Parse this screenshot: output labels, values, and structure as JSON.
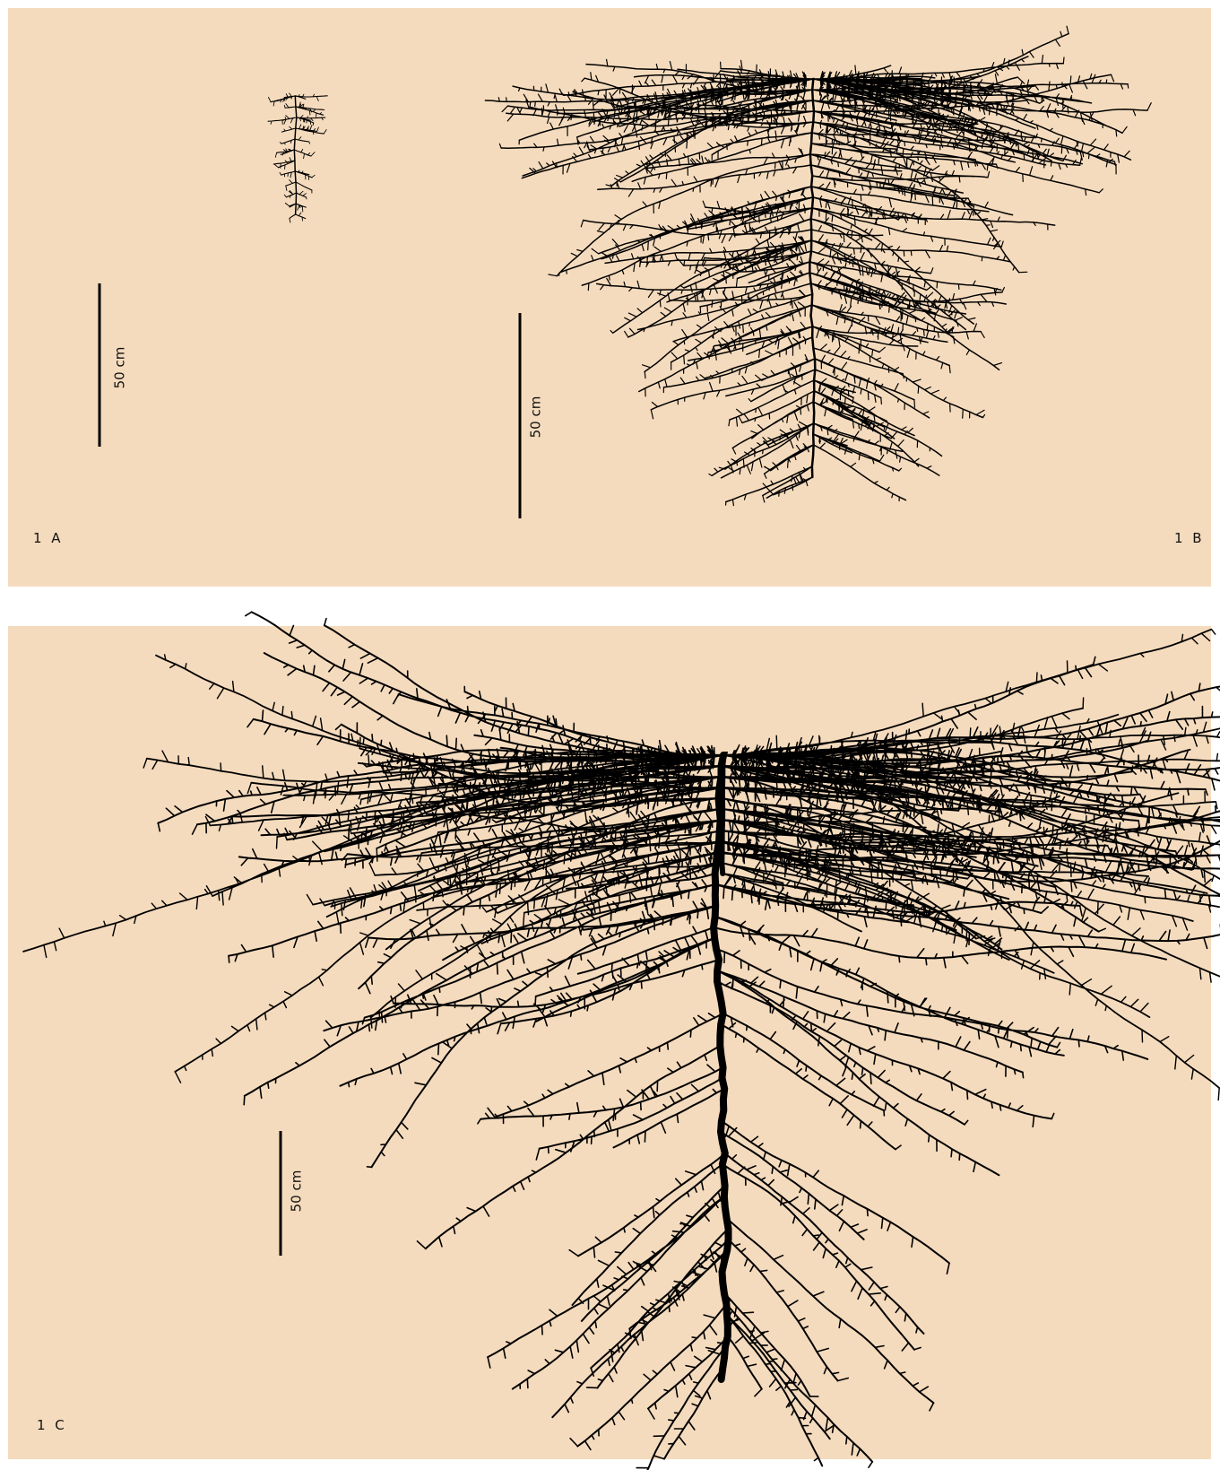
{
  "panels": [
    {
      "label": "1 A",
      "scale_bar": "50 cm"
    },
    {
      "label": "1 B",
      "scale_bar": "50 cm"
    },
    {
      "label": "1 C",
      "scale_bar": "50 cm"
    }
  ]
}
